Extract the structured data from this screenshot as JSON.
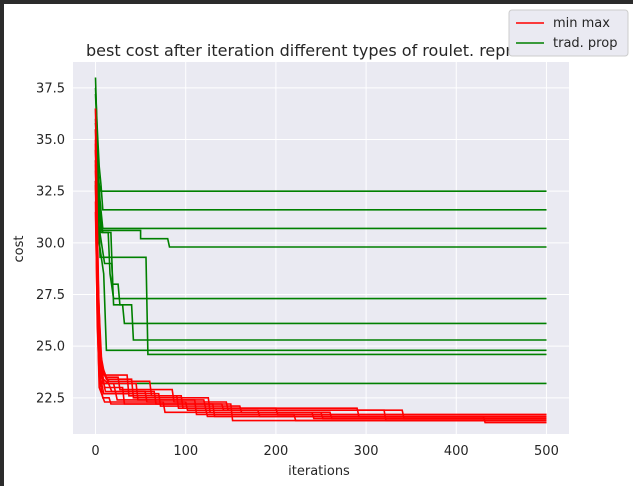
{
  "chart_data": {
    "type": "line",
    "title": "best cost after iteration different types of roulet. reprod.",
    "xlabel": "iterations",
    "ylabel": "cost",
    "xlim": [
      -25,
      525
    ],
    "ylim": [
      20.75,
      38.75
    ],
    "xticks": [
      0,
      100,
      200,
      300,
      400,
      500
    ],
    "xtick_labels": [
      "0",
      "100",
      "200",
      "300",
      "400",
      "500"
    ],
    "yticks": [
      22.5,
      25.0,
      27.5,
      30.0,
      32.5,
      35.0,
      37.5
    ],
    "ytick_labels": [
      "22.5",
      "25.0",
      "27.5",
      "30.0",
      "32.5",
      "35.0",
      "37.5"
    ],
    "grid": true,
    "legend_position": "top-right",
    "legend": [
      {
        "label": "min max",
        "color": "#ff0000"
      },
      {
        "label": "trad. prop",
        "color": "#008000"
      }
    ],
    "series": [
      {
        "group": "trad. prop",
        "color": "#008000",
        "points": [
          [
            0,
            38.0
          ],
          [
            1,
            36.5
          ],
          [
            2,
            35.0
          ],
          [
            3,
            33.0
          ],
          [
            6,
            32.5
          ],
          [
            500,
            32.5
          ]
        ]
      },
      {
        "group": "trad. prop",
        "color": "#008000",
        "points": [
          [
            0,
            37.5
          ],
          [
            2,
            35.5
          ],
          [
            4,
            33.7
          ],
          [
            6,
            32.8
          ],
          [
            8,
            31.6
          ],
          [
            500,
            31.6
          ]
        ]
      },
      {
        "group": "trad. prop",
        "color": "#008000",
        "points": [
          [
            0,
            37.2
          ],
          [
            2,
            35.0
          ],
          [
            3,
            33.5
          ],
          [
            5,
            32.0
          ],
          [
            8,
            30.7
          ],
          [
            500,
            30.7
          ]
        ]
      },
      {
        "group": "trad. prop",
        "color": "#008000",
        "points": [
          [
            0,
            36.5
          ],
          [
            2,
            34.0
          ],
          [
            4,
            32.0
          ],
          [
            6,
            30.6
          ],
          [
            50,
            30.6
          ],
          [
            50,
            30.2
          ],
          [
            80,
            30.2
          ],
          [
            82,
            29.8
          ],
          [
            500,
            29.8
          ]
        ]
      },
      {
        "group": "trad. prop",
        "color": "#008000",
        "points": [
          [
            0,
            35.8
          ],
          [
            2,
            34.0
          ],
          [
            3,
            32.0
          ],
          [
            5,
            29.3
          ],
          [
            56,
            29.3
          ],
          [
            58,
            24.6
          ],
          [
            500,
            24.6
          ]
        ]
      },
      {
        "group": "trad. prop",
        "color": "#008000",
        "points": [
          [
            0,
            36.0
          ],
          [
            3,
            33.0
          ],
          [
            6,
            30.5
          ],
          [
            14,
            30.5
          ],
          [
            16,
            28.5
          ],
          [
            20,
            27.3
          ],
          [
            500,
            27.3
          ]
        ]
      },
      {
        "group": "trad. prop",
        "color": "#008000",
        "points": [
          [
            0,
            35.5
          ],
          [
            3,
            32.0
          ],
          [
            8,
            30.5
          ],
          [
            17,
            30.5
          ],
          [
            19,
            28.0
          ],
          [
            25,
            28.0
          ],
          [
            27,
            27.0
          ],
          [
            40,
            27.0
          ],
          [
            42,
            25.3
          ],
          [
            500,
            25.3
          ]
        ]
      },
      {
        "group": "trad. prop",
        "color": "#008000",
        "points": [
          [
            0,
            34.5
          ],
          [
            3,
            31.0
          ],
          [
            10,
            29.0
          ],
          [
            18,
            29.0
          ],
          [
            20,
            27.0
          ],
          [
            30,
            27.0
          ],
          [
            32,
            26.1
          ],
          [
            500,
            26.1
          ]
        ]
      },
      {
        "group": "trad. prop",
        "color": "#008000",
        "points": [
          [
            0,
            34.0
          ],
          [
            4,
            30.0
          ],
          [
            9,
            28.5
          ],
          [
            12,
            24.8
          ],
          [
            500,
            24.8
          ]
        ]
      },
      {
        "group": "trad. prop",
        "color": "#008000",
        "points": [
          [
            0,
            33.0
          ],
          [
            2,
            28.0
          ],
          [
            4,
            26.0
          ],
          [
            5,
            23.2
          ],
          [
            500,
            23.2
          ]
        ]
      },
      {
        "group": "min max",
        "color": "#ff0000",
        "points": [
          [
            0,
            36.5
          ],
          [
            2,
            31.0
          ],
          [
            4,
            26.0
          ],
          [
            8,
            23.2
          ],
          [
            20,
            23.2
          ],
          [
            24,
            22.4
          ],
          [
            120,
            22.4
          ],
          [
            124,
            21.6
          ],
          [
            500,
            21.6
          ]
        ]
      },
      {
        "group": "min max",
        "color": "#ff0000",
        "points": [
          [
            0,
            34.5
          ],
          [
            3,
            28.0
          ],
          [
            6,
            24.0
          ],
          [
            12,
            23.4
          ],
          [
            40,
            23.4
          ],
          [
            42,
            22.5
          ],
          [
            125,
            22.5
          ],
          [
            127,
            21.8
          ],
          [
            250,
            21.8
          ],
          [
            252,
            21.5
          ],
          [
            500,
            21.5
          ]
        ]
      },
      {
        "group": "min max",
        "color": "#ff0000",
        "points": [
          [
            0,
            35.0
          ],
          [
            2,
            29.5
          ],
          [
            5,
            24.5
          ],
          [
            10,
            23.0
          ],
          [
            30,
            23.0
          ],
          [
            32,
            22.2
          ],
          [
            140,
            22.2
          ],
          [
            142,
            21.9
          ],
          [
            320,
            21.9
          ],
          [
            322,
            21.4
          ],
          [
            500,
            21.4
          ]
        ]
      },
      {
        "group": "min max",
        "color": "#ff0000",
        "points": [
          [
            0,
            33.5
          ],
          [
            3,
            27.0
          ],
          [
            6,
            23.8
          ],
          [
            15,
            23.3
          ],
          [
            60,
            23.3
          ],
          [
            62,
            22.6
          ],
          [
            90,
            22.6
          ],
          [
            92,
            22.0
          ],
          [
            200,
            22.0
          ],
          [
            202,
            21.7
          ],
          [
            500,
            21.7
          ]
        ]
      },
      {
        "group": "min max",
        "color": "#ff0000",
        "points": [
          [
            0,
            34.0
          ],
          [
            2,
            28.5
          ],
          [
            5,
            24.0
          ],
          [
            11,
            22.8
          ],
          [
            55,
            22.8
          ],
          [
            57,
            22.3
          ],
          [
            100,
            22.3
          ],
          [
            102,
            21.9
          ],
          [
            180,
            21.9
          ],
          [
            182,
            21.6
          ],
          [
            430,
            21.6
          ],
          [
            432,
            21.3
          ],
          [
            500,
            21.3
          ]
        ]
      },
      {
        "group": "min max",
        "color": "#ff0000",
        "points": [
          [
            0,
            32.8
          ],
          [
            2,
            27.0
          ],
          [
            4,
            23.8
          ],
          [
            9,
            22.7
          ],
          [
            70,
            22.7
          ],
          [
            72,
            22.1
          ],
          [
            160,
            22.1
          ],
          [
            162,
            21.8
          ],
          [
            260,
            21.8
          ],
          [
            262,
            21.5
          ],
          [
            500,
            21.5
          ]
        ]
      },
      {
        "group": "min max",
        "color": "#ff0000",
        "points": [
          [
            0,
            33.0
          ],
          [
            3,
            26.5
          ],
          [
            6,
            23.5
          ],
          [
            14,
            23.2
          ],
          [
            45,
            23.2
          ],
          [
            47,
            22.4
          ],
          [
            110,
            22.4
          ],
          [
            112,
            21.7
          ],
          [
            220,
            21.7
          ],
          [
            222,
            21.4
          ],
          [
            500,
            21.4
          ]
        ]
      },
      {
        "group": "min max",
        "color": "#ff0000",
        "points": [
          [
            0,
            34.8
          ],
          [
            2,
            29.0
          ],
          [
            5,
            24.3
          ],
          [
            12,
            23.5
          ],
          [
            25,
            23.5
          ],
          [
            27,
            22.9
          ],
          [
            85,
            22.9
          ],
          [
            87,
            22.3
          ],
          [
            145,
            22.3
          ],
          [
            147,
            21.9
          ],
          [
            340,
            21.9
          ],
          [
            342,
            21.5
          ],
          [
            500,
            21.5
          ]
        ]
      },
      {
        "group": "min max",
        "color": "#ff0000",
        "points": [
          [
            0,
            32.0
          ],
          [
            2,
            26.0
          ],
          [
            4,
            23.5
          ],
          [
            8,
            22.5
          ],
          [
            15,
            22.5
          ],
          [
            17,
            22.2
          ],
          [
            130,
            22.2
          ],
          [
            132,
            21.6
          ],
          [
            500,
            21.6
          ]
        ]
      },
      {
        "group": "min max",
        "color": "#ff0000",
        "points": [
          [
            0,
            35.5
          ],
          [
            2,
            30.0
          ],
          [
            4,
            25.0
          ],
          [
            10,
            23.6
          ],
          [
            35,
            23.6
          ],
          [
            37,
            22.6
          ],
          [
            95,
            22.6
          ],
          [
            97,
            22.0
          ],
          [
            290,
            22.0
          ],
          [
            292,
            21.6
          ],
          [
            500,
            21.6
          ]
        ]
      },
      {
        "group": "min max",
        "color": "#ff0000",
        "points": [
          [
            0,
            33.8
          ],
          [
            3,
            27.5
          ],
          [
            7,
            24.0
          ],
          [
            18,
            22.8
          ],
          [
            65,
            22.8
          ],
          [
            67,
            22.2
          ],
          [
            150,
            22.2
          ],
          [
            152,
            21.4
          ],
          [
            500,
            21.4
          ]
        ]
      },
      {
        "group": "min max",
        "color": "#ff0000",
        "points": [
          [
            0,
            31.5
          ],
          [
            2,
            26.5
          ],
          [
            4,
            23.0
          ],
          [
            10,
            22.3
          ],
          [
            75,
            22.3
          ],
          [
            77,
            21.8
          ],
          [
            240,
            21.8
          ],
          [
            242,
            21.5
          ],
          [
            500,
            21.5
          ]
        ]
      }
    ]
  }
}
